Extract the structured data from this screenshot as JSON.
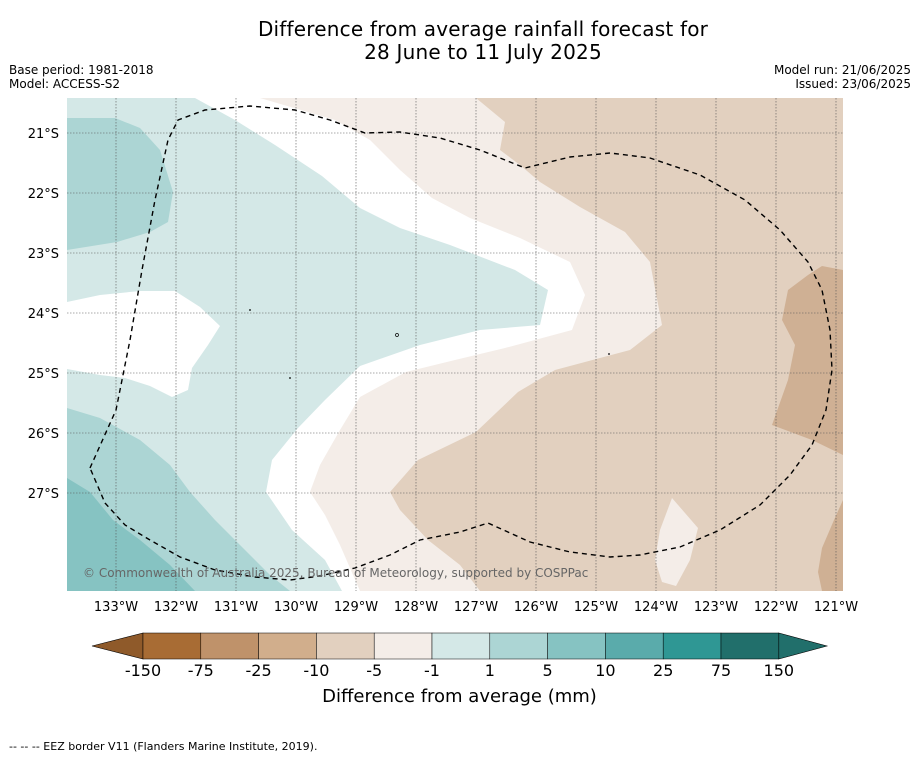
{
  "title": {
    "line1": "Difference from average rainfall forecast for",
    "line2": "28 June to 11 July 2025"
  },
  "meta": {
    "base_period": "Base period: 1981-2018",
    "model": "Model: ACCESS-S2",
    "model_run": "Model run: 21/06/2025",
    "issued": "Issued: 23/06/2025"
  },
  "map": {
    "latitude_labels": [
      "21°S",
      "22°S",
      "23°S",
      "24°S",
      "25°S",
      "26°S",
      "27°S"
    ],
    "longitude_labels": [
      "133°W",
      "132°W",
      "131°W",
      "130°W",
      "129°W",
      "128°W",
      "127°W",
      "126°W",
      "125°W",
      "124°W",
      "123°W",
      "122°W",
      "121°W"
    ],
    "copyright": "© Commonwealth of Australia 2025, Bureau of Meteorology, supported by COSPPac",
    "colors": {
      "brown_strong": "#cfb094",
      "brown_light": "#e2d0bf",
      "brown_pale": "#f4ede8",
      "neutral": "#ffffff",
      "teal_pale": "#d4e8e7",
      "teal_light": "#acd5d4",
      "teal_mid": "#86c3c2",
      "eez_line": "#000000"
    }
  },
  "colorbar": {
    "title": "Difference from average (mm)",
    "tick_labels": [
      "-150",
      "-75",
      "-25",
      "-10",
      "-5",
      "-1",
      "1",
      "5",
      "10",
      "25",
      "75",
      "150"
    ],
    "colors": [
      "#a86c34",
      "#bf926a",
      "#d1ae8c",
      "#e2d0bf",
      "#f4ede8",
      "#ffffff",
      "#d4e8e7",
      "#acd5d4",
      "#86c3c2",
      "#5aabab",
      "#2f9794",
      "#216f6b"
    ],
    "extend_low_color": "#8f5a2a",
    "extend_high_color": "#216f6b"
  },
  "footnote": "--  --  -- EEZ border V11 (Flanders Marine Institute, 2019)."
}
